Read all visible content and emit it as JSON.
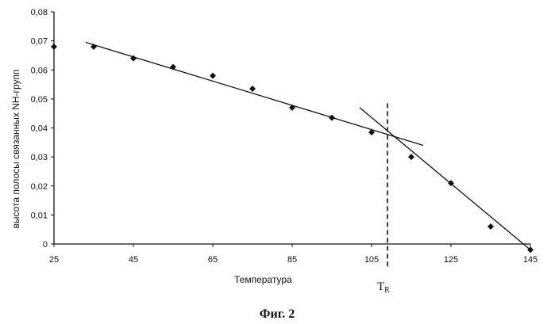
{
  "chart_data": {
    "type": "scatter",
    "xlabel": "Температура",
    "ylabel": "высота полосы связанных  NH-групп",
    "xlim": [
      25,
      145
    ],
    "ylim": [
      0,
      0.08
    ],
    "x_ticks": [
      "25",
      "45",
      "65",
      "85",
      "105",
      "125",
      "145"
    ],
    "y_ticks": [
      "0",
      "0,01",
      "0,02",
      "0,03",
      "0,04",
      "0,05",
      "0,06",
      "0,07",
      "0,08"
    ],
    "series": [
      {
        "points": [
          [
            25,
            0.068
          ],
          [
            35,
            0.068
          ],
          [
            45,
            0.064
          ],
          [
            55,
            0.061
          ],
          [
            65,
            0.058
          ],
          [
            75,
            0.0535
          ],
          [
            85,
            0.047
          ],
          [
            95,
            0.0435
          ],
          [
            105,
            0.0385
          ],
          [
            115,
            0.03
          ],
          [
            125,
            0.021
          ],
          [
            135,
            0.006
          ],
          [
            145,
            -0.002
          ]
        ]
      }
    ],
    "trend_lines": [
      {
        "from": [
          33,
          0.0695
        ],
        "to": [
          118,
          0.034
        ]
      },
      {
        "from": [
          102,
          0.047
        ],
        "to": [
          145,
          -0.002
        ]
      }
    ],
    "vertical_marker": {
      "x": 109,
      "label": "T",
      "subscript": "R",
      "style": "dashed"
    },
    "grid": false,
    "legend": "none"
  },
  "caption": "Фиг. 2"
}
